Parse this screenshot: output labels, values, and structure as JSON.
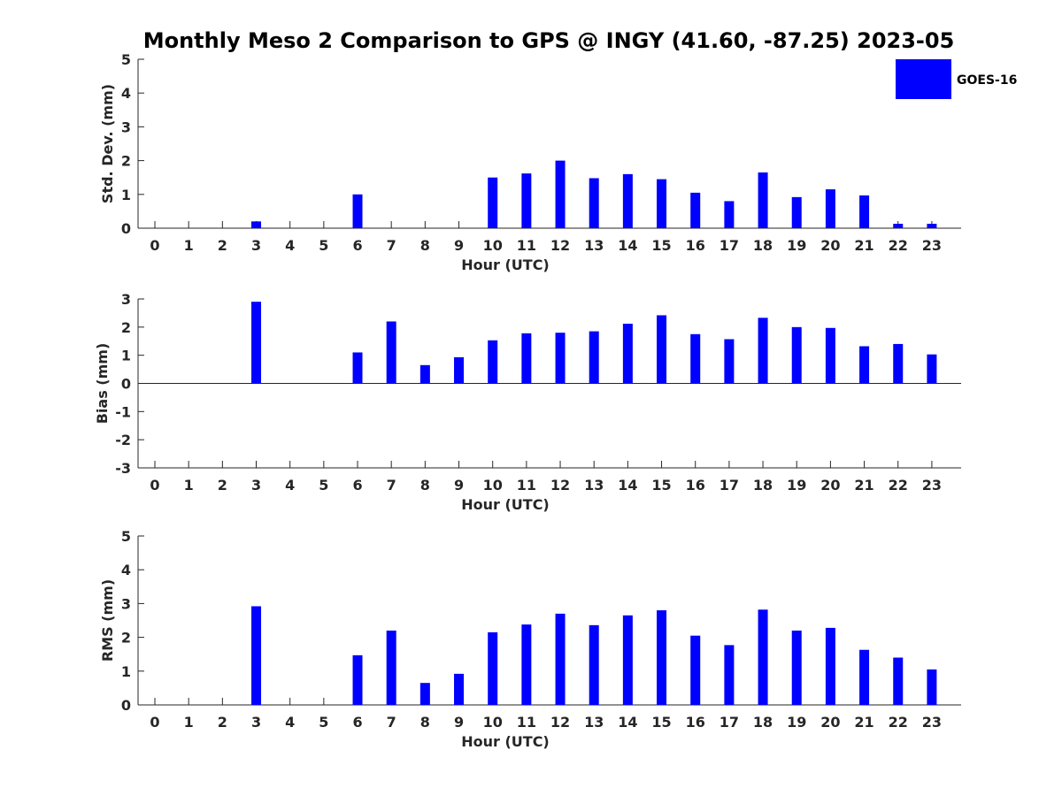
{
  "title": "Monthly Meso 2 Comparison to GPS @ INGY (41.60, -87.25) 2023-05",
  "colors": {
    "bar": "#0000ff",
    "axis": "#262626",
    "background": "#ffffff"
  },
  "legend": {
    "label": "GOES-16",
    "placement": "top-right"
  },
  "chart_data": [
    {
      "type": "bar",
      "xlabel": "Hour (UTC)",
      "ylabel": "Std. Dev. (mm)",
      "ylim": [
        0,
        5
      ],
      "yticks": [
        "0",
        "1",
        "2",
        "3",
        "4",
        "5"
      ],
      "categories": [
        "0",
        "1",
        "2",
        "3",
        "4",
        "5",
        "6",
        "7",
        "8",
        "9",
        "10",
        "11",
        "12",
        "13",
        "14",
        "15",
        "16",
        "17",
        "18",
        "19",
        "20",
        "21",
        "22",
        "23"
      ],
      "series": [
        {
          "name": "GOES-16",
          "values": [
            null,
            null,
            null,
            0.2,
            null,
            null,
            1.0,
            null,
            null,
            null,
            1.5,
            1.62,
            2.0,
            1.48,
            1.6,
            1.45,
            1.05,
            0.8,
            1.65,
            0.92,
            1.15,
            0.97,
            0.13,
            0.13
          ]
        }
      ]
    },
    {
      "type": "bar",
      "xlabel": "Hour (UTC)",
      "ylabel": "Bias (mm)",
      "ylim": [
        -3,
        3
      ],
      "yticks": [
        "-3",
        "-2",
        "-1",
        "0",
        "1",
        "2",
        "3"
      ],
      "categories": [
        "0",
        "1",
        "2",
        "3",
        "4",
        "5",
        "6",
        "7",
        "8",
        "9",
        "10",
        "11",
        "12",
        "13",
        "14",
        "15",
        "16",
        "17",
        "18",
        "19",
        "20",
        "21",
        "22",
        "23"
      ],
      "series": [
        {
          "name": "GOES-16",
          "values": [
            null,
            null,
            null,
            2.9,
            null,
            null,
            1.1,
            2.2,
            0.65,
            0.93,
            1.53,
            1.78,
            1.8,
            1.85,
            2.12,
            2.42,
            1.75,
            1.57,
            2.33,
            2.0,
            1.97,
            1.32,
            1.4,
            1.03
          ]
        }
      ]
    },
    {
      "type": "bar",
      "xlabel": "Hour (UTC)",
      "ylabel": "RMS (mm)",
      "ylim": [
        0,
        5
      ],
      "yticks": [
        "0",
        "1",
        "2",
        "3",
        "4",
        "5"
      ],
      "categories": [
        "0",
        "1",
        "2",
        "3",
        "4",
        "5",
        "6",
        "7",
        "8",
        "9",
        "10",
        "11",
        "12",
        "13",
        "14",
        "15",
        "16",
        "17",
        "18",
        "19",
        "20",
        "21",
        "22",
        "23"
      ],
      "series": [
        {
          "name": "GOES-16",
          "values": [
            null,
            null,
            null,
            2.92,
            null,
            null,
            1.47,
            2.2,
            0.65,
            0.92,
            2.15,
            2.38,
            2.7,
            2.36,
            2.65,
            2.8,
            2.05,
            1.77,
            2.82,
            2.2,
            2.28,
            1.63,
            1.4,
            1.05
          ]
        }
      ]
    }
  ]
}
